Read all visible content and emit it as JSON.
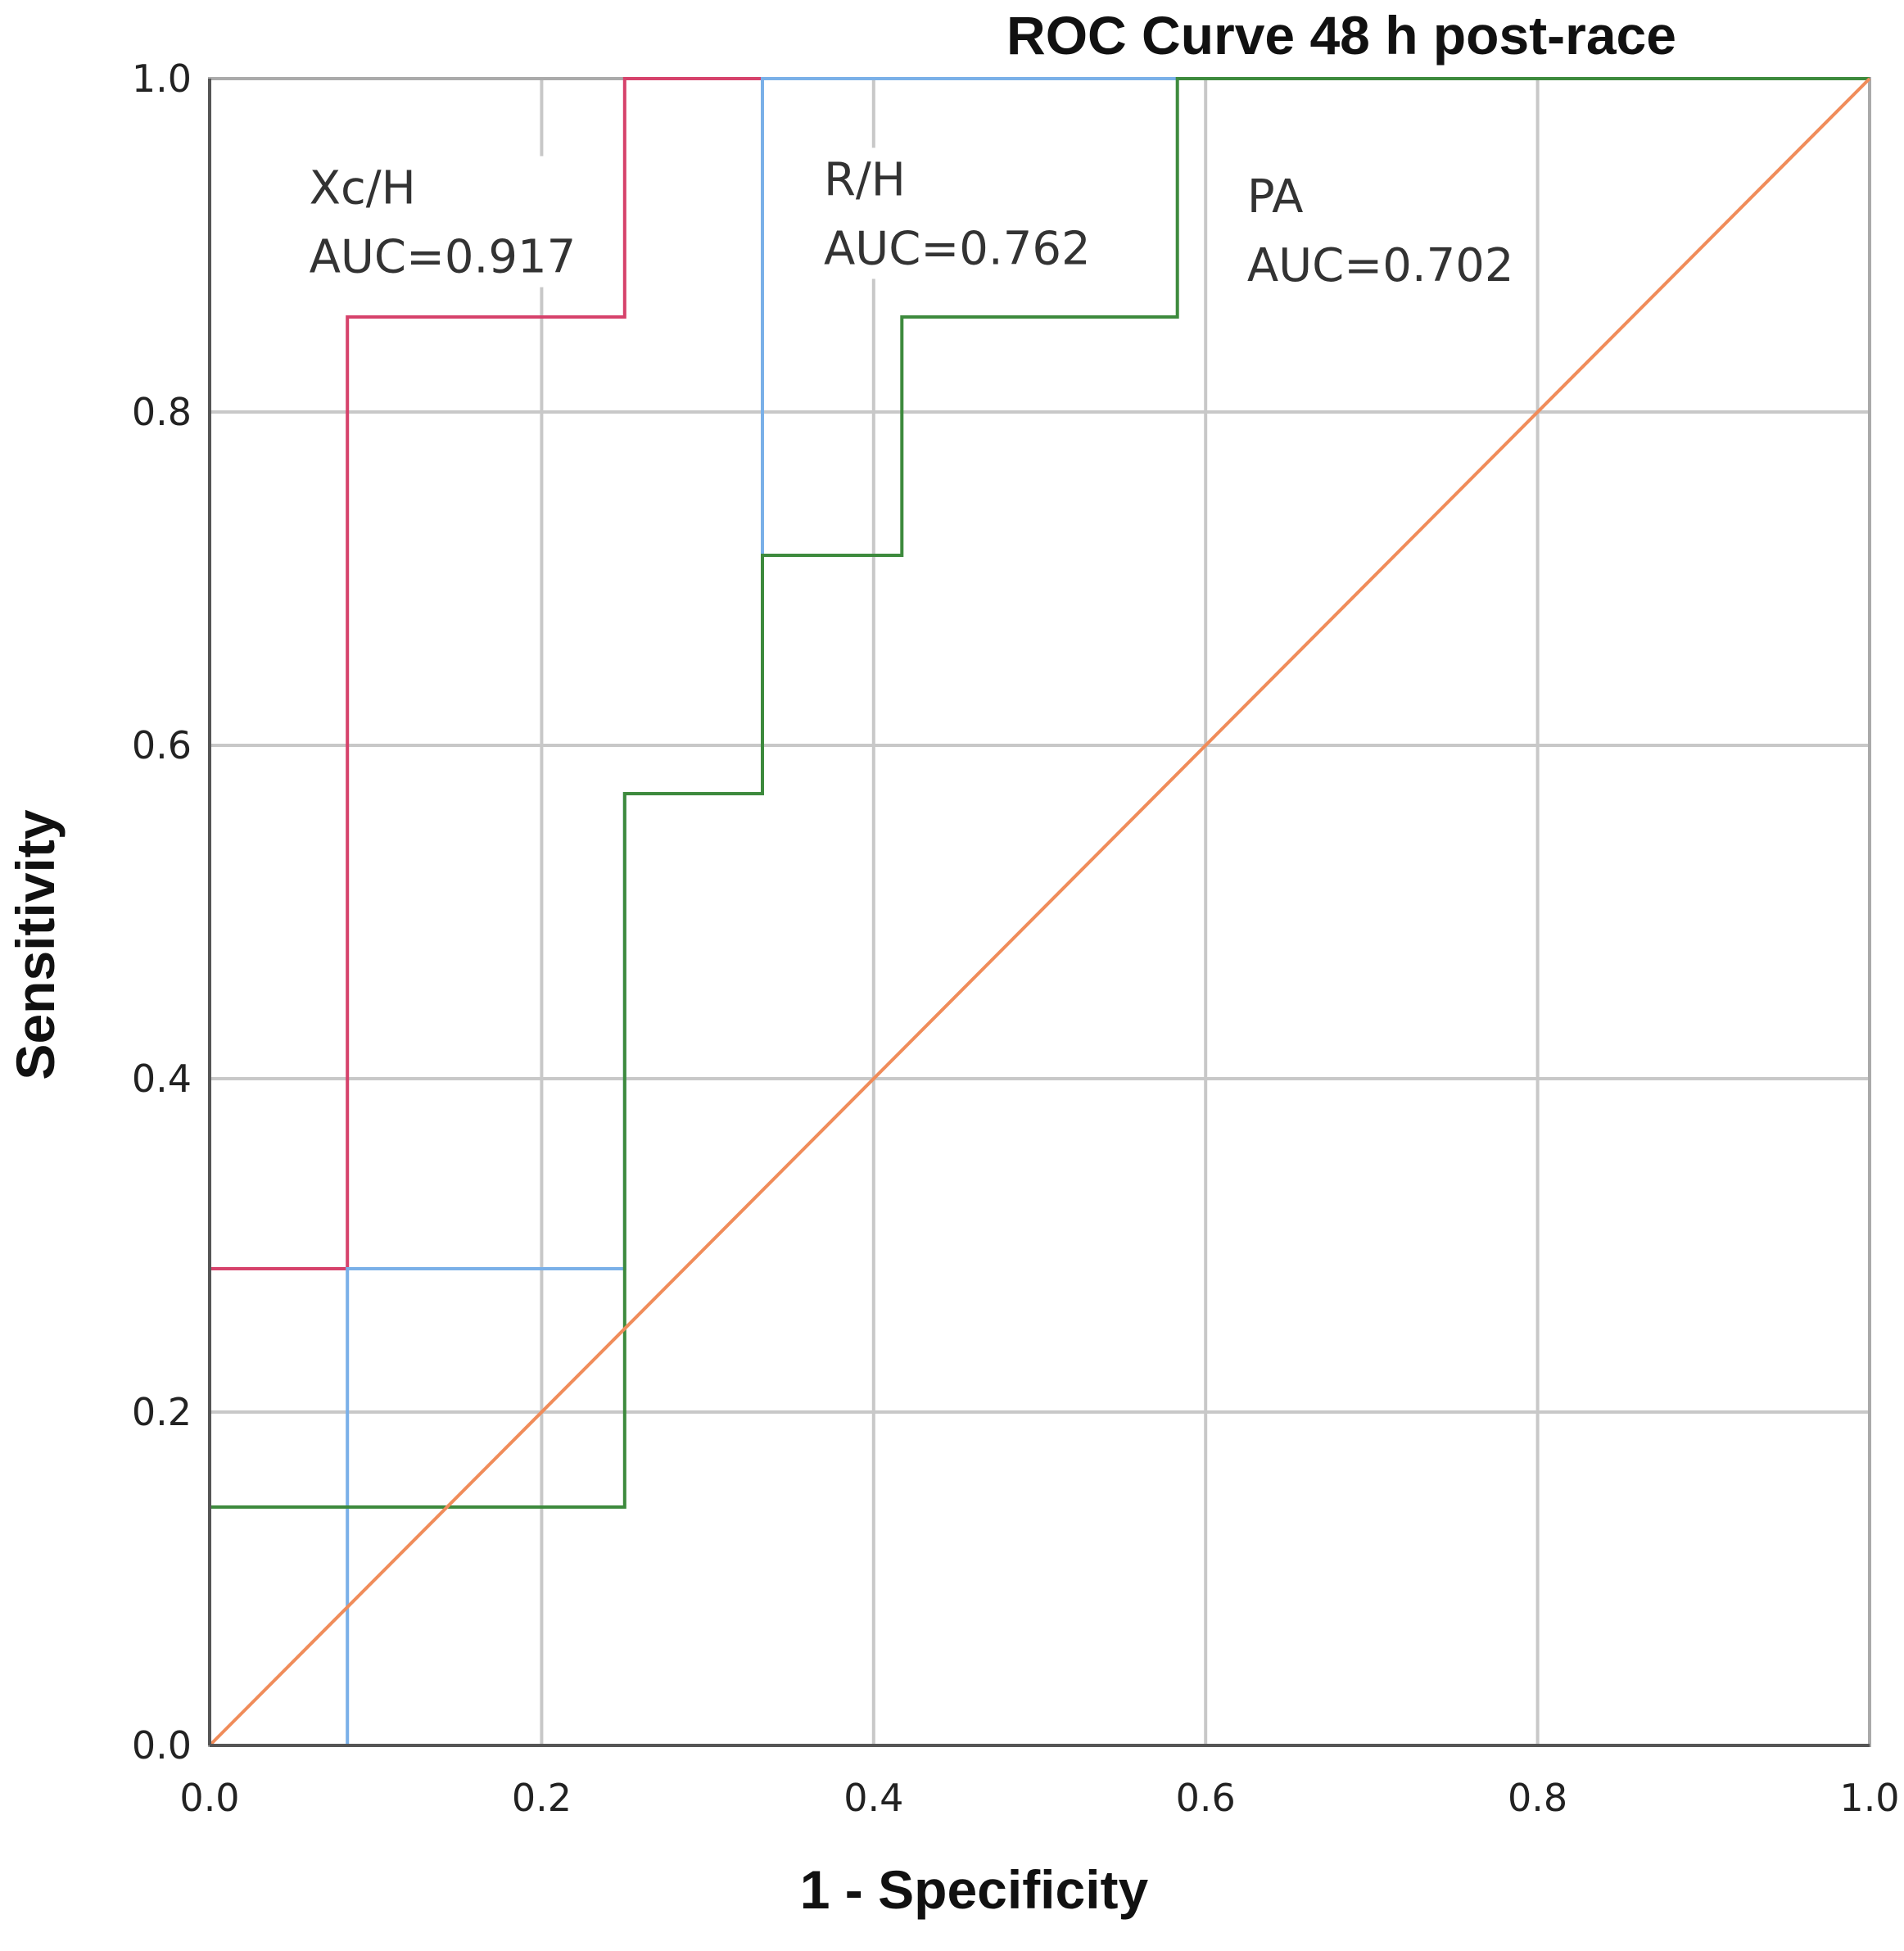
{
  "chart_data": {
    "type": "line",
    "title": "ROC Curve 48 h post-race",
    "xlabel": "1 - Specificity",
    "ylabel": "Sensitivity",
    "xlim": [
      0.0,
      1.0
    ],
    "ylim": [
      0.0,
      1.0
    ],
    "x_ticks": [
      "0.0",
      "0.2",
      "0.4",
      "0.6",
      "0.8",
      "1.0"
    ],
    "y_ticks": [
      "0.0",
      "0.2",
      "0.4",
      "0.6",
      "0.8",
      "1.0"
    ],
    "grid": true,
    "series": [
      {
        "name": "Xc/H",
        "color": "#d6426b",
        "points": [
          [
            0,
            0
          ],
          [
            0,
            0.286
          ],
          [
            0.083,
            0.286
          ],
          [
            0.083,
            0.857
          ],
          [
            0.25,
            0.857
          ],
          [
            0.25,
            1.0
          ],
          [
            0.583,
            1.0
          ]
        ]
      },
      {
        "name": "R/H",
        "color": "#7ab0e8",
        "points": [
          [
            0,
            0
          ],
          [
            0.083,
            0
          ],
          [
            0.083,
            0.286
          ],
          [
            0.25,
            0.286
          ],
          [
            0.25,
            0.571
          ],
          [
            0.333,
            0.571
          ],
          [
            0.333,
            1.0
          ],
          [
            0.583,
            1.0
          ]
        ]
      },
      {
        "name": "PA",
        "color": "#3d8a3d",
        "points": [
          [
            0,
            0
          ],
          [
            0,
            0.143
          ],
          [
            0.25,
            0.143
          ],
          [
            0.25,
            0.571
          ],
          [
            0.333,
            0.571
          ],
          [
            0.333,
            0.714
          ],
          [
            0.417,
            0.714
          ],
          [
            0.417,
            0.857
          ],
          [
            0.583,
            0.857
          ],
          [
            0.583,
            1.0
          ],
          [
            1.0,
            1.0
          ]
        ]
      },
      {
        "name": "Reference line",
        "color": "#f08c5a",
        "points": [
          [
            0,
            0
          ],
          [
            1,
            1
          ]
        ]
      }
    ],
    "annotations": [
      {
        "series": "Xc/H",
        "label": "Xc/H",
        "auc_text": "AUC=0.917",
        "x": 0.06,
        "y": 0.925
      },
      {
        "series": "R/H",
        "label": "R/H",
        "auc_text": "AUC=0.762",
        "x": 0.37,
        "y": 0.93
      },
      {
        "series": "PA",
        "label": "PA",
        "auc_text": "AUC=0.702",
        "x": 0.625,
        "y": 0.92
      }
    ]
  }
}
